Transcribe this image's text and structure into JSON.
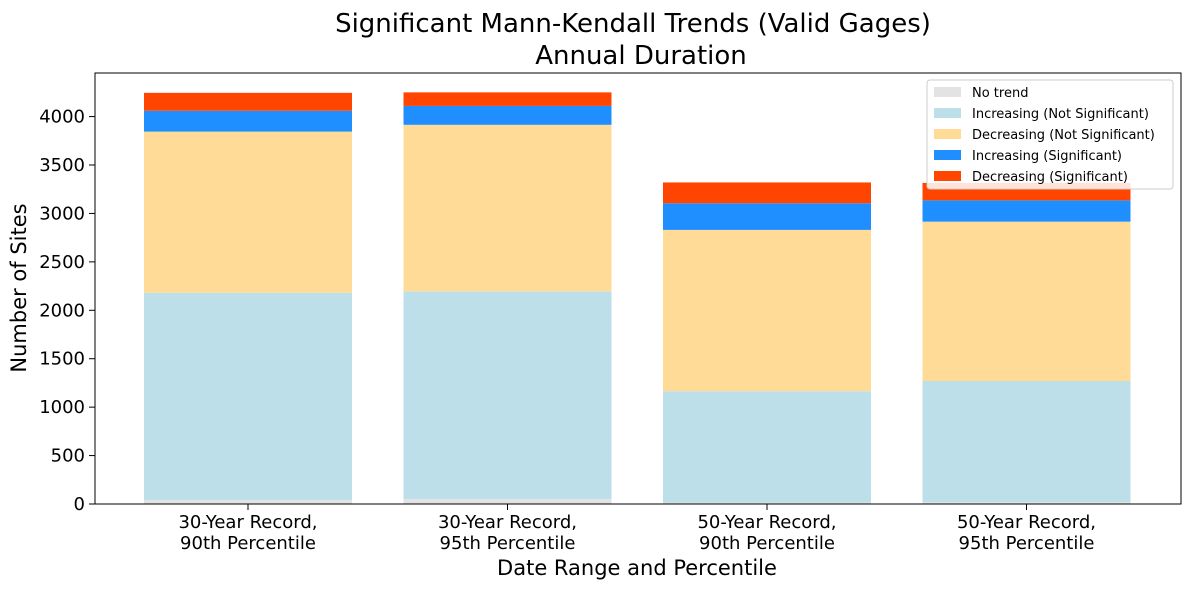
{
  "chart_data": {
    "type": "bar",
    "stacked": true,
    "title": [
      "Significant Mann-Kendall Trends (Valid Gages)",
      "Annual Duration"
    ],
    "xlabel": "Date Range and Percentile",
    "ylabel": "Number of Sites",
    "ylim": [
      0,
      4450
    ],
    "yticks": [
      "0",
      "500",
      "1000",
      "1500",
      "2000",
      "2500",
      "3000",
      "3500",
      "4000"
    ],
    "grid": false,
    "legend_position": "top-right",
    "categories": [
      [
        "30-Year Record,",
        "90th Percentile"
      ],
      [
        "30-Year Record,",
        "95th Percentile"
      ],
      [
        "50-Year Record,",
        "90th Percentile"
      ],
      [
        "50-Year Record,",
        "95th Percentile"
      ]
    ],
    "series": [
      {
        "name": "No trend",
        "color": "#e3e3e3",
        "values": [
          40,
          50,
          15,
          20
        ]
      },
      {
        "name": "Increasing (Not Significant)",
        "color": "#bddfea",
        "values": [
          2140,
          2145,
          1150,
          1250
        ]
      },
      {
        "name": "Decreasing (Not Significant)",
        "color": "#ffdb97",
        "values": [
          1665,
          1720,
          1665,
          1645
        ]
      },
      {
        "name": "Increasing (Significant)",
        "color": "#1f8fff",
        "values": [
          215,
          195,
          275,
          220
        ]
      },
      {
        "name": "Decreasing (Significant)",
        "color": "#ff4500",
        "values": [
          185,
          140,
          215,
          180
        ]
      }
    ]
  }
}
